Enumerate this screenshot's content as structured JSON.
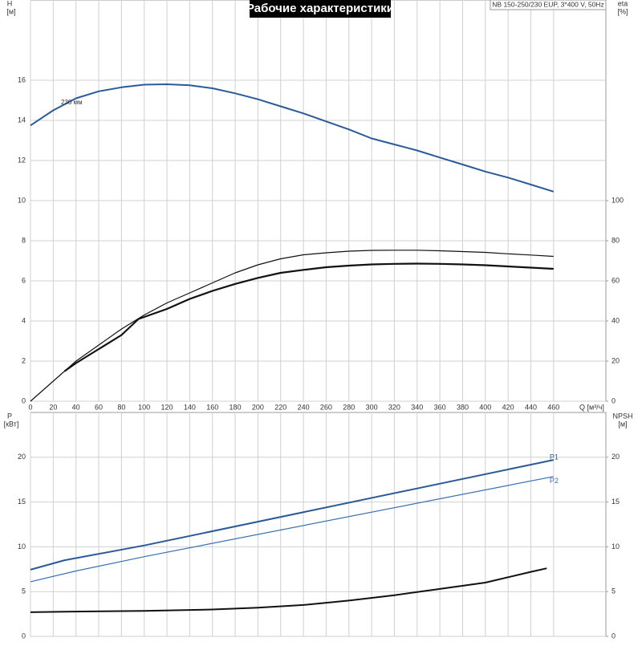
{
  "title": "Рабочие характеристики",
  "model": "NB 150-250/230 EUP, 3*400 V, 50Hz",
  "chart_data": [
    {
      "type": "line",
      "ylabel": "H",
      "yunit": "[м]",
      "y2label": "eta",
      "y2unit": "[%]",
      "xlabel": "Q [м³/ч]",
      "xlim": [
        0,
        506
      ],
      "xticks": [
        0,
        20,
        40,
        60,
        80,
        100,
        120,
        140,
        160,
        180,
        200,
        220,
        240,
        260,
        280,
        300,
        320,
        340,
        360,
        380,
        400,
        420,
        440,
        460
      ],
      "ylim": [
        0,
        20
      ],
      "yticks": [
        0,
        2,
        4,
        6,
        8,
        10,
        12,
        14,
        16
      ],
      "y2lim": [
        0,
        200
      ],
      "y2ticks": [
        0,
        20,
        40,
        60,
        80,
        100
      ],
      "grid": true,
      "annotation": "230 мм",
      "series": [
        {
          "name": "H",
          "color": "#2a5a98",
          "width": 2,
          "x": [
            0,
            20,
            40,
            60,
            80,
            100,
            120,
            140,
            160,
            180,
            200,
            220,
            240,
            260,
            280,
            300,
            320,
            340,
            360,
            380,
            400,
            420,
            440,
            460
          ],
          "values": [
            13.75,
            14.5,
            15.1,
            15.45,
            15.65,
            15.78,
            15.8,
            15.75,
            15.6,
            15.35,
            15.05,
            14.7,
            14.35,
            13.95,
            13.55,
            13.1,
            12.8,
            12.5,
            12.15,
            11.8,
            11.45,
            11.15,
            10.8,
            10.45
          ]
        },
        {
          "name": "eta",
          "color": "#111111",
          "width": 1.2,
          "axis": "y2",
          "x": [
            0,
            20,
            40,
            60,
            80,
            100,
            120,
            140,
            160,
            180,
            200,
            220,
            240,
            260,
            280,
            300,
            320,
            340,
            360,
            380,
            400,
            420,
            440,
            460
          ],
          "values": [
            0,
            10,
            20,
            28,
            36,
            43,
            49,
            54,
            59,
            64,
            68,
            71,
            73,
            74,
            74.8,
            75.2,
            75.3,
            75.3,
            75,
            74.6,
            74.2,
            73.5,
            72.9,
            72.2
          ]
        },
        {
          "name": "eta",
          "color": "#111111",
          "width": 2.2,
          "axis": "y2",
          "x": [
            30,
            40,
            60,
            80,
            95,
            120,
            140,
            160,
            180,
            200,
            220,
            240,
            260,
            280,
            300,
            320,
            340,
            360,
            380,
            400,
            420,
            440,
            460
          ],
          "values": [
            15,
            19,
            26,
            33,
            41,
            46,
            51,
            55,
            58.5,
            61.5,
            64,
            65.5,
            66.8,
            67.6,
            68.2,
            68.5,
            68.6,
            68.5,
            68.2,
            67.8,
            67.2,
            66.6,
            66
          ]
        }
      ]
    },
    {
      "type": "line",
      "ylabel": "P",
      "yunit": "[кВт]",
      "y2label": "NPSH",
      "y2unit": "[м]",
      "xlim": [
        0,
        506
      ],
      "xticks": [
        0,
        20,
        40,
        60,
        80,
        100,
        120,
        140,
        160,
        180,
        200,
        220,
        240,
        260,
        280,
        300,
        320,
        340,
        360,
        380,
        400,
        420,
        440,
        460
      ],
      "ylim": [
        0,
        25
      ],
      "yticks": [
        0,
        5,
        10,
        15,
        20
      ],
      "y2lim": [
        0,
        25
      ],
      "y2ticks": [
        0,
        5,
        10,
        15,
        20
      ],
      "grid": true,
      "series": [
        {
          "name": "P1",
          "color": "#2a5a98",
          "width": 2,
          "x": [
            0,
            30,
            100,
            460
          ],
          "values": [
            7.45,
            8.5,
            10.15,
            19.7
          ]
        },
        {
          "name": "P2",
          "color": "#3a70b4",
          "width": 1.2,
          "x": [
            0,
            40,
            100,
            460
          ],
          "values": [
            6.1,
            7.3,
            8.9,
            17.85
          ]
        },
        {
          "name": "NPSH",
          "color": "#111111",
          "width": 2,
          "axis": "y2",
          "x": [
            0,
            30,
            100,
            160,
            200,
            240,
            280,
            320,
            360,
            400,
            440,
            454
          ],
          "values": [
            2.7,
            2.75,
            2.85,
            3.0,
            3.2,
            3.5,
            4.0,
            4.6,
            5.3,
            6.0,
            7.2,
            7.6
          ]
        }
      ]
    }
  ]
}
